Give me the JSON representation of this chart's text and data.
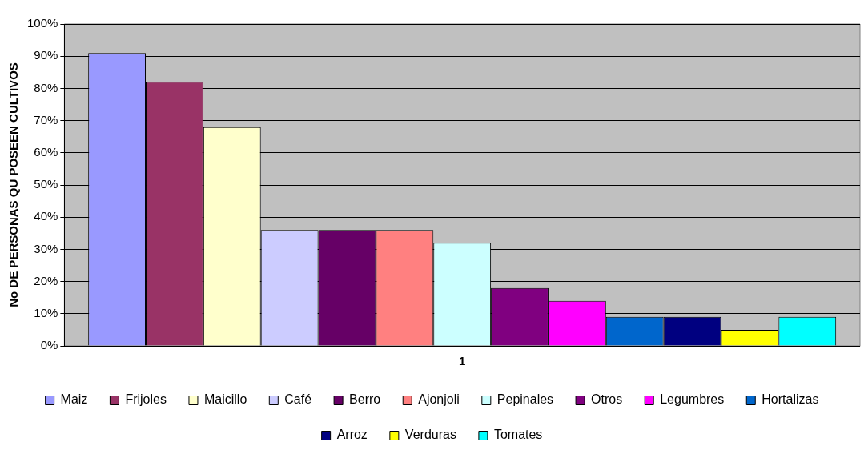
{
  "chart_data": {
    "type": "bar",
    "categories": [
      "1"
    ],
    "ylabel": "No DE PERSONAS QU POSEEN CULTIVOS",
    "ylim": [
      0,
      100
    ],
    "yticks": [
      {
        "value": 0,
        "label": "0%"
      },
      {
        "value": 10,
        "label": "10%"
      },
      {
        "value": 20,
        "label": "20%"
      },
      {
        "value": 30,
        "label": "30%"
      },
      {
        "value": 40,
        "label": "40%"
      },
      {
        "value": 50,
        "label": "50%"
      },
      {
        "value": 60,
        "label": "60%"
      },
      {
        "value": 70,
        "label": "70%"
      },
      {
        "value": 80,
        "label": "80%"
      },
      {
        "value": 90,
        "label": "90%"
      },
      {
        "value": 100,
        "label": "100%"
      }
    ],
    "grid": "y",
    "legend": "bottom",
    "series": [
      {
        "name": "Maiz",
        "color": "#9999ff",
        "values": [
          91
        ]
      },
      {
        "name": "Frijoles",
        "color": "#993366",
        "values": [
          82
        ]
      },
      {
        "name": "Maicillo",
        "color": "#ffffcc",
        "values": [
          68
        ]
      },
      {
        "name": "Café",
        "color": "#ccccff",
        "values": [
          36
        ]
      },
      {
        "name": "Berro",
        "color": "#660066",
        "values": [
          36
        ]
      },
      {
        "name": "Ajonjoli",
        "color": "#ff8080",
        "values": [
          36
        ]
      },
      {
        "name": "Pepinales",
        "color": "#ccffff",
        "values": [
          32
        ]
      },
      {
        "name": "Otros",
        "color": "#800080",
        "values": [
          18
        ]
      },
      {
        "name": "Legumbres",
        "color": "#ff00ff",
        "values": [
          14
        ]
      },
      {
        "name": "Hortalizas",
        "color": "#0066cc",
        "values": [
          9
        ]
      },
      {
        "name": "Arroz",
        "color": "#000080",
        "values": [
          9
        ]
      },
      {
        "name": "Verduras",
        "color": "#ffff00",
        "values": [
          5
        ]
      },
      {
        "name": "Tomates",
        "color": "#00ffff",
        "values": [
          9
        ]
      }
    ]
  }
}
